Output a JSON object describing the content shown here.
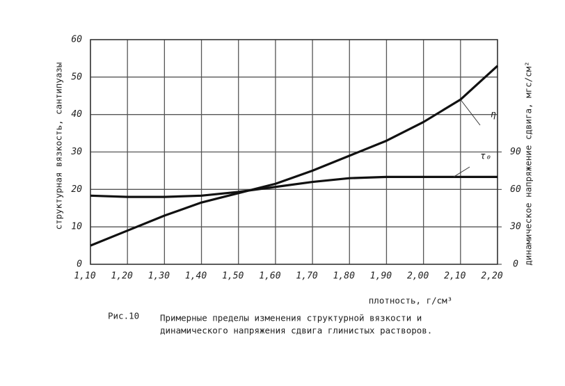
{
  "chart_data": {
    "type": "line",
    "x_label": "плотность, г/см³",
    "y_label": "структурная вязкость, сантипуазы",
    "y2_label": "динамическое напряжение сдвига, мгс/см²",
    "caption_label": "Рис.10",
    "caption_lines": [
      "Примерные пределы изменения структурной вязкости и",
      "динамического напряжения сдвига глинистых растворов."
    ],
    "x": [
      1.1,
      1.2,
      1.3,
      1.4,
      1.5,
      1.6,
      1.7,
      1.8,
      1.9,
      2.0,
      2.1,
      2.2
    ],
    "series": [
      {
        "name": "η",
        "color": "#111111",
        "values": [
          5,
          9,
          13,
          16.5,
          19,
          21.5,
          25,
          29,
          33,
          38,
          44,
          53
        ]
      },
      {
        "name": "τ₀",
        "color": "#111111",
        "axis": "y2",
        "values": [
          55,
          54,
          54,
          55,
          58,
          62,
          66,
          69,
          70,
          70,
          70,
          70
        ]
      }
    ],
    "xlim": [
      1.1,
      2.2
    ],
    "xticks": [
      {
        "value": 1.1,
        "label": "1,10"
      },
      {
        "value": 1.2,
        "label": "1,20"
      },
      {
        "value": 1.3,
        "label": "1,30"
      },
      {
        "value": 1.4,
        "label": "1,40"
      },
      {
        "value": 1.5,
        "label": "1,50"
      },
      {
        "value": 1.6,
        "label": "1,60"
      },
      {
        "value": 1.7,
        "label": "1,70"
      },
      {
        "value": 1.8,
        "label": "1,80"
      },
      {
        "value": 1.9,
        "label": "1,90"
      },
      {
        "value": 2.0,
        "label": "2,00"
      },
      {
        "value": 2.1,
        "label": "2,10"
      },
      {
        "value": 2.2,
        "label": "2,20"
      }
    ],
    "ylim": [
      0,
      60
    ],
    "yticks": [
      0,
      10,
      20,
      30,
      40,
      50,
      60
    ],
    "y2lim": [
      0,
      180
    ],
    "y2ticks": [
      0,
      30,
      60,
      90
    ],
    "grid": true
  }
}
